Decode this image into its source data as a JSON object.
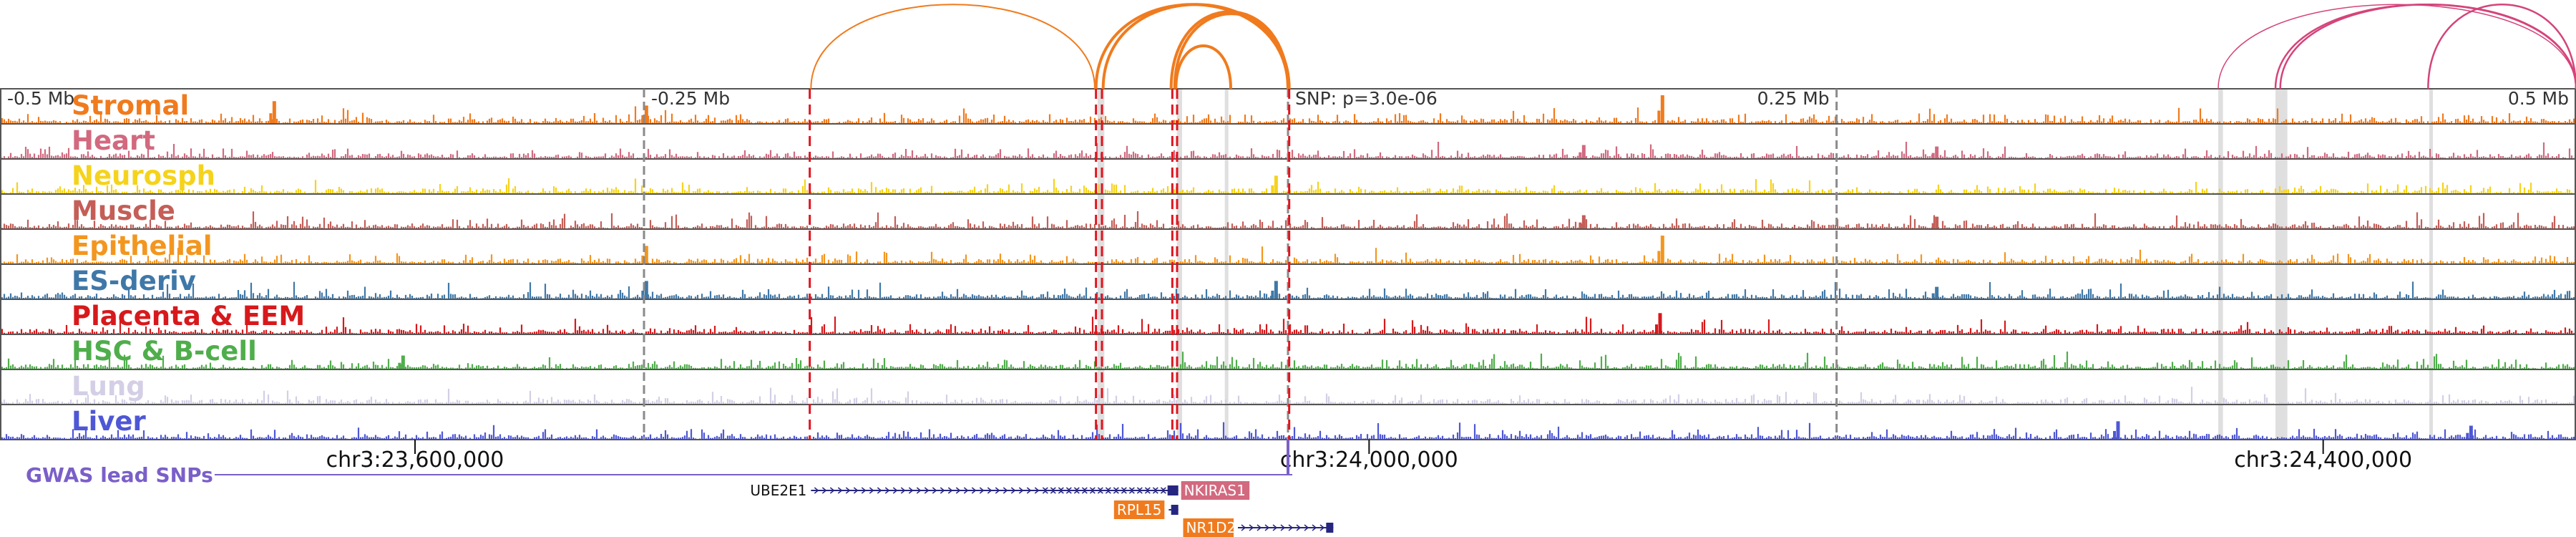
{
  "chart_data": {
    "type": "genome-browser-tracks",
    "region": {
      "chrom": "chr3",
      "start": 23426000,
      "end": 24506000
    },
    "scale_labels": [
      {
        "text": "-0.5 Mb",
        "pos": 23426000,
        "anchor": "start"
      },
      {
        "text": "-0.25 Mb",
        "pos": 23696000,
        "anchor": "start"
      },
      {
        "text": "0.25 Mb",
        "pos": 24196000,
        "anchor": "end"
      },
      {
        "text": "0.5 Mb",
        "pos": 24506000,
        "anchor": "end"
      }
    ],
    "snp": {
      "label": "SNP: p=3.0e-06",
      "pos": 23966000
    },
    "axis_ticks": [
      {
        "label": "chr3:23,600,000",
        "pos": 23600000
      },
      {
        "label": "chr3:24,000,000",
        "pos": 24000000
      },
      {
        "label": "chr3:24,400,000",
        "pos": 24400000
      }
    ],
    "dashed_grey_lines": [
      23696000,
      23966000,
      24196000
    ],
    "highlight_bands": [
      [
        23886200,
        23889000
      ],
      [
        23919400,
        23921600
      ],
      [
        23939500,
        23941000
      ],
      [
        24356000,
        24358000
      ],
      [
        24380000,
        24385000
      ],
      [
        24444500,
        24446000
      ]
    ],
    "red_dashed_lines": [
      23765500,
      23885500,
      23888000,
      23917500,
      23919500,
      23966500
    ],
    "tracks": [
      {
        "name": "Stromal",
        "color": "#f07b1e"
      },
      {
        "name": "Heart",
        "color": "#d2697f"
      },
      {
        "name": "Neurosph",
        "color": "#f5d31c"
      },
      {
        "name": "Muscle",
        "color": "#c45e57"
      },
      {
        "name": "Epithelial",
        "color": "#f3961f"
      },
      {
        "name": "ES-deriv",
        "color": "#3f78a8"
      },
      {
        "name": "Placenta & EEM",
        "color": "#d7191c"
      },
      {
        "name": "HSC & B-cell",
        "color": "#4fae4b"
      },
      {
        "name": "Lung",
        "color": "#d4cfe6"
      },
      {
        "name": "Liver",
        "color": "#4e57d5"
      }
    ],
    "peaks": [
      {
        "pos": 23541000,
        "h": 0.75,
        "tracks": [
          0
        ]
      },
      {
        "pos": 23697000,
        "h": 0.6,
        "tracks": [
          0,
          4,
          5
        ]
      },
      {
        "pos": 23961000,
        "h": 0.6,
        "tracks": [
          2,
          5
        ]
      },
      {
        "pos": 24123000,
        "h": 0.95,
        "tracks": [
          0,
          4
        ]
      },
      {
        "pos": 24122000,
        "h": 0.7,
        "tracks": [
          6
        ]
      },
      {
        "pos": 24090000,
        "h": 0.45,
        "tracks": [
          1,
          3
        ]
      },
      {
        "pos": 24314000,
        "h": 0.6,
        "tracks": [
          9
        ]
      },
      {
        "pos": 24462000,
        "h": 0.45,
        "tracks": [
          9
        ]
      },
      {
        "pos": 24238000,
        "h": 0.4,
        "tracks": [
          1,
          3,
          5
        ]
      },
      {
        "pos": 23595000,
        "h": 0.45,
        "tracks": [
          7
        ]
      }
    ],
    "arcs_orange": [
      [
        23766000,
        23885000
      ],
      [
        23885500,
        23966000
      ],
      [
        23888500,
        23966500
      ],
      [
        23917000,
        23966000
      ],
      [
        23919000,
        23942000
      ],
      [
        23918500,
        23966000
      ]
    ],
    "arcs_pink": [
      [
        24356000,
        24506000
      ],
      [
        24380000,
        24506000
      ],
      [
        24382000,
        24506000
      ],
      [
        24444000,
        24506000
      ]
    ],
    "gwas_label": "GWAS lead SNPs",
    "genes": [
      {
        "name": "UBE2E1",
        "start": 23766000,
        "end": 23918500,
        "strand": "+",
        "row": 0,
        "label_side": "left",
        "label_color": "#111111",
        "label_bg": ""
      },
      {
        "name": "NKIRAS1",
        "start": 23862000,
        "end": 23920000,
        "strand": "-",
        "row": 0,
        "label_side": "right",
        "label_color": "#ffffff",
        "label_bg": "#d2697f"
      },
      {
        "name": "RPL15",
        "start": 23916000,
        "end": 23920000,
        "strand": "+",
        "row": 1,
        "label_side": "left",
        "label_color": "#ffffff",
        "label_bg": "#f07b1e"
      },
      {
        "name": "NR1D2",
        "start": 23945000,
        "end": 23985000,
        "strand": "+",
        "row": 2,
        "label_side": "left",
        "label_color": "#ffffff",
        "label_bg": "#f07b1e"
      }
    ],
    "gwas_color": "#7a5fc8",
    "gene_color": "#262680"
  }
}
